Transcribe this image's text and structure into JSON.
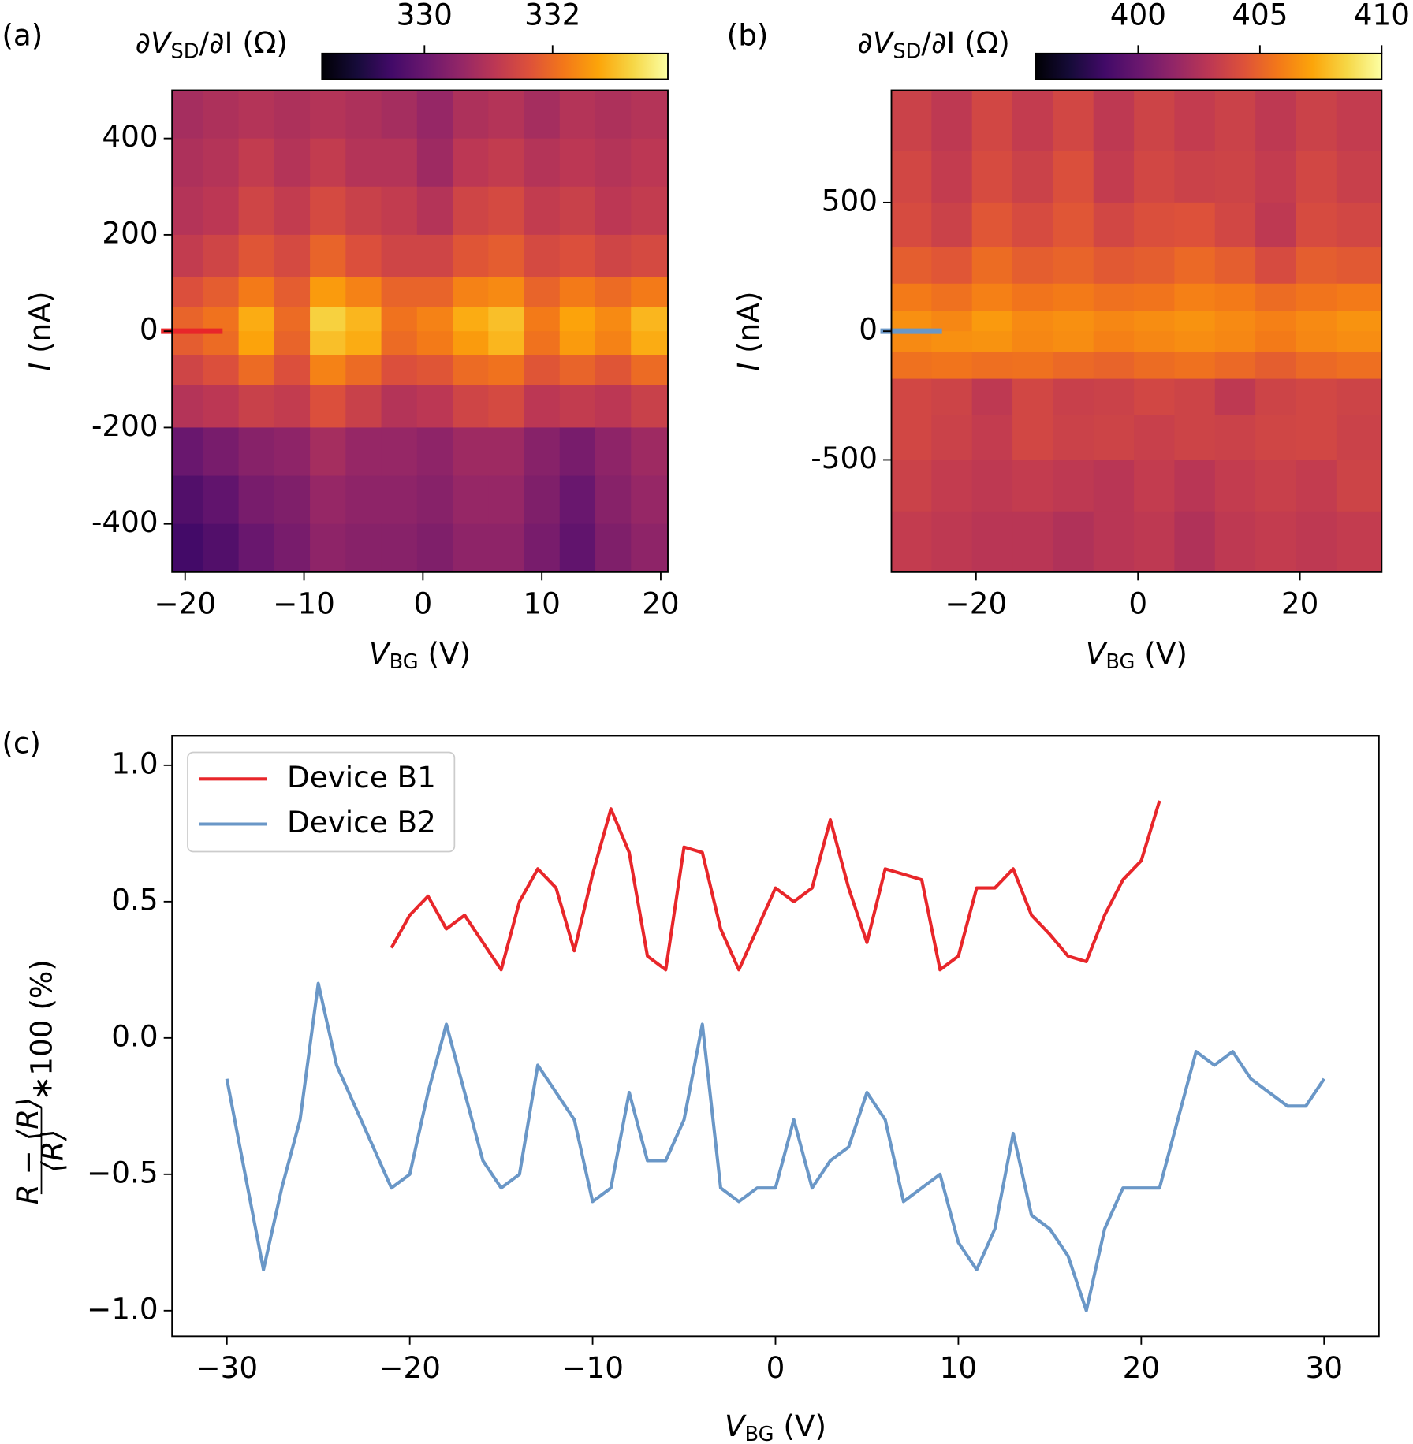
{
  "chart_data": [
    {
      "type": "heatmap",
      "title": "(a)",
      "cmap": "inferno",
      "xlabel": [
        "V",
        "BG",
        " (V)"
      ],
      "ylabel": [
        "I",
        " (nA)"
      ],
      "colorbar_label": [
        "∂V",
        "SD",
        "/∂I (Ω)"
      ],
      "xlim": [
        -21.1,
        20.6
      ],
      "ylim": [
        -500,
        500
      ],
      "xticks": [
        {
          "value": -20,
          "label": "−20"
        },
        {
          "value": -10,
          "label": "−10"
        },
        0,
        10,
        20
      ],
      "yticks": [
        -400,
        -200,
        0,
        200,
        400
      ],
      "clim": [
        328.4,
        333.8
      ],
      "cticks": [
        330,
        332
      ],
      "x": [
        -20,
        -17,
        -14,
        -11,
        -8,
        -5,
        -2,
        1,
        4,
        7,
        10,
        13,
        16,
        19
      ],
      "y": [
        450,
        350,
        250,
        150,
        75,
        25,
        -25,
        -75,
        -150,
        -250,
        -350,
        -450
      ],
      "z": [
        [
          330.8,
          330.9,
          331.0,
          330.9,
          331.0,
          330.9,
          330.8,
          330.6,
          330.9,
          331.0,
          330.8,
          331.0,
          330.9,
          331.0
        ],
        [
          330.9,
          331.0,
          331.2,
          331.0,
          331.2,
          331.0,
          331.0,
          330.7,
          331.1,
          331.2,
          331.0,
          331.1,
          331.0,
          331.1
        ],
        [
          331.0,
          331.1,
          331.4,
          331.2,
          331.5,
          331.3,
          331.2,
          331.0,
          331.4,
          331.5,
          331.2,
          331.3,
          331.1,
          331.2
        ],
        [
          331.2,
          331.4,
          331.7,
          331.5,
          331.9,
          331.6,
          331.4,
          331.4,
          331.7,
          331.8,
          331.5,
          331.6,
          331.4,
          331.5
        ],
        [
          331.6,
          331.8,
          332.2,
          331.8,
          332.6,
          332.3,
          331.9,
          331.9,
          332.3,
          332.4,
          331.9,
          332.2,
          332.0,
          332.2
        ],
        [
          331.9,
          332.1,
          332.8,
          332.0,
          333.2,
          332.9,
          332.1,
          332.3,
          332.8,
          333.0,
          332.2,
          332.7,
          332.4,
          332.9
        ],
        [
          331.8,
          332.0,
          332.7,
          331.9,
          333.0,
          332.8,
          332.0,
          332.2,
          332.6,
          332.9,
          332.1,
          332.6,
          332.3,
          332.8
        ],
        [
          331.4,
          331.6,
          332.0,
          331.6,
          332.3,
          332.0,
          331.6,
          331.7,
          332.0,
          332.1,
          331.7,
          331.9,
          331.7,
          332.0
        ],
        [
          331.0,
          331.1,
          331.3,
          331.2,
          331.6,
          331.3,
          331.0,
          331.1,
          331.4,
          331.5,
          331.1,
          331.2,
          331.1,
          331.3
        ],
        [
          330.0,
          330.2,
          330.4,
          330.5,
          330.8,
          330.6,
          330.6,
          330.5,
          330.7,
          330.7,
          330.4,
          330.2,
          330.5,
          330.7
        ],
        [
          329.7,
          329.9,
          330.2,
          330.3,
          330.6,
          330.5,
          330.5,
          330.4,
          330.6,
          330.6,
          330.3,
          330.0,
          330.4,
          330.6
        ],
        [
          329.5,
          329.7,
          330.0,
          330.2,
          330.5,
          330.4,
          330.4,
          330.3,
          330.5,
          330.5,
          330.2,
          329.9,
          330.3,
          330.5
        ]
      ]
    },
    {
      "type": "heatmap",
      "title": "(b)",
      "cmap": "inferno",
      "xlabel": [
        "V",
        "BG",
        " (V)"
      ],
      "ylabel": [
        "I",
        " (nA)"
      ],
      "colorbar_label": [
        "∂V",
        "SD",
        "/∂I (Ω)"
      ],
      "xlim": [
        -30.45,
        30.1
      ],
      "ylim": [
        -936,
        936
      ],
      "xticks": [
        {
          "value": -20,
          "label": "−20"
        },
        0,
        20
      ],
      "yticks": [
        -500,
        0,
        500
      ],
      "clim": [
        395.8,
        410
      ],
      "cticks": [
        400,
        405,
        410
      ],
      "x": [
        -28,
        -23,
        -18,
        -13,
        -8,
        -3,
        2,
        7,
        12,
        17,
        22,
        27
      ],
      "y": [
        800,
        600,
        400,
        250,
        120,
        40,
        -40,
        -120,
        -250,
        -400,
        -600,
        -800
      ],
      "z": [
        [
          403.5,
          403.0,
          403.8,
          403.2,
          403.8,
          403.0,
          403.6,
          403.2,
          403.5,
          403.0,
          403.5,
          403.2
        ],
        [
          403.8,
          403.2,
          404.0,
          403.5,
          404.2,
          403.2,
          403.8,
          403.5,
          403.6,
          403.2,
          403.8,
          403.4
        ],
        [
          404.0,
          403.5,
          404.5,
          404.0,
          404.5,
          403.8,
          404.2,
          404.3,
          403.8,
          403.0,
          404.0,
          403.8
        ],
        [
          404.8,
          404.5,
          405.3,
          404.8,
          405.0,
          404.6,
          404.8,
          405.2,
          404.8,
          404.0,
          404.8,
          404.6
        ],
        [
          405.8,
          405.5,
          406.0,
          405.6,
          405.8,
          405.5,
          405.6,
          406.0,
          405.8,
          405.3,
          405.6,
          405.8
        ],
        [
          406.5,
          406.2,
          406.8,
          406.3,
          406.5,
          406.2,
          406.4,
          406.6,
          406.3,
          406.0,
          406.3,
          406.6
        ],
        [
          406.3,
          406.5,
          406.6,
          406.2,
          406.4,
          406.0,
          406.2,
          406.4,
          406.2,
          405.8,
          406.2,
          406.4
        ],
        [
          405.5,
          405.6,
          405.4,
          405.5,
          405.2,
          405.0,
          405.3,
          405.5,
          405.2,
          404.8,
          405.2,
          405.4
        ],
        [
          403.8,
          403.6,
          403.0,
          403.8,
          403.4,
          403.5,
          403.8,
          403.6,
          403.0,
          403.6,
          403.8,
          403.6
        ],
        [
          403.8,
          403.5,
          403.2,
          403.8,
          403.5,
          403.6,
          403.4,
          403.6,
          403.5,
          403.7,
          403.8,
          403.5
        ],
        [
          403.5,
          403.2,
          403.0,
          403.2,
          403.0,
          402.8,
          403.2,
          402.8,
          403.2,
          403.4,
          403.2,
          403.6
        ],
        [
          403.2,
          403.0,
          402.8,
          402.8,
          402.5,
          402.8,
          403.0,
          402.5,
          403.0,
          403.2,
          403.0,
          403.2
        ]
      ]
    },
    {
      "type": "line",
      "title": "(c)",
      "xlabel": [
        "V",
        "BG",
        " (V)"
      ],
      "ylabel_numerator": "R − ⟨R⟩",
      "ylabel_denominator": "⟨R⟩",
      "ylabel_suffix": "∗100 (%)",
      "xlim": [
        -33,
        33
      ],
      "ylim": [
        -1.094,
        1.108
      ],
      "xticks": [
        {
          "value": -30,
          "label": "−30"
        },
        {
          "value": -20,
          "label": "−20"
        },
        {
          "value": -10,
          "label": "−10"
        },
        0,
        10,
        20,
        30
      ],
      "yticks": [
        {
          "value": -1,
          "label": "−1.0"
        },
        {
          "value": -0.5,
          "label": "−0.5"
        },
        {
          "value": 0,
          "label": "0.0"
        },
        {
          "value": 0.5,
          "label": "0.5"
        },
        {
          "value": 1,
          "label": "1.0"
        }
      ],
      "legend": "upper left",
      "series": [
        {
          "name": "Device B1",
          "color": "#e8262a",
          "x": [
            -21,
            -20,
            -19,
            -18,
            -17,
            -16,
            -15,
            -14,
            -13,
            -12,
            -11,
            -10,
            -9,
            -8,
            -7,
            -6,
            -5,
            -4,
            -3,
            -2,
            -1,
            0,
            1,
            2,
            3,
            4,
            5,
            6,
            7,
            8,
            9,
            10,
            11,
            12,
            13,
            14,
            15,
            16,
            17,
            18,
            19,
            20,
            21
          ],
          "values": [
            0.33,
            0.45,
            0.52,
            0.4,
            0.45,
            0.35,
            0.25,
            0.5,
            0.62,
            0.55,
            0.32,
            0.6,
            0.84,
            0.68,
            0.3,
            0.25,
            0.7,
            0.68,
            0.4,
            0.25,
            0.4,
            0.55,
            0.5,
            0.55,
            0.8,
            0.55,
            0.35,
            0.62,
            0.6,
            0.58,
            0.25,
            0.3,
            0.55,
            0.55,
            0.62,
            0.45,
            0.38,
            0.3,
            0.28,
            0.45,
            0.58,
            0.65,
            0.87
          ]
        },
        {
          "name": "Device B2",
          "color": "#6a97c7",
          "x": [
            -30,
            -29,
            -28,
            -27,
            -26,
            -25,
            -24,
            -23,
            -22,
            -21,
            -20,
            -19,
            -18,
            -17,
            -16,
            -15,
            -14,
            -13,
            -12,
            -11,
            -10,
            -9,
            -8,
            -7,
            -6,
            -5,
            -4,
            -3,
            -2,
            -1,
            0,
            1,
            2,
            3,
            4,
            5,
            6,
            7,
            8,
            9,
            10,
            11,
            12,
            13,
            14,
            15,
            16,
            17,
            18,
            19,
            20,
            21,
            22,
            23,
            24,
            25,
            26,
            27,
            28,
            29,
            30
          ],
          "values": [
            -0.15,
            -0.5,
            -0.85,
            -0.55,
            -0.3,
            0.2,
            -0.1,
            -0.25,
            -0.4,
            -0.55,
            -0.5,
            -0.2,
            0.05,
            -0.2,
            -0.45,
            -0.55,
            -0.5,
            -0.1,
            -0.2,
            -0.3,
            -0.6,
            -0.55,
            -0.2,
            -0.45,
            -0.45,
            -0.3,
            0.05,
            -0.55,
            -0.6,
            -0.55,
            -0.55,
            -0.3,
            -0.55,
            -0.45,
            -0.4,
            -0.2,
            -0.3,
            -0.6,
            -0.55,
            -0.5,
            -0.75,
            -0.85,
            -0.7,
            -0.35,
            -0.65,
            -0.7,
            -0.8,
            -1.0,
            -0.7,
            -0.55,
            -0.55,
            -0.55,
            -0.3,
            -0.05,
            -0.1,
            -0.05,
            -0.15,
            -0.2,
            -0.25,
            -0.25,
            -0.15
          ]
        }
      ]
    }
  ]
}
